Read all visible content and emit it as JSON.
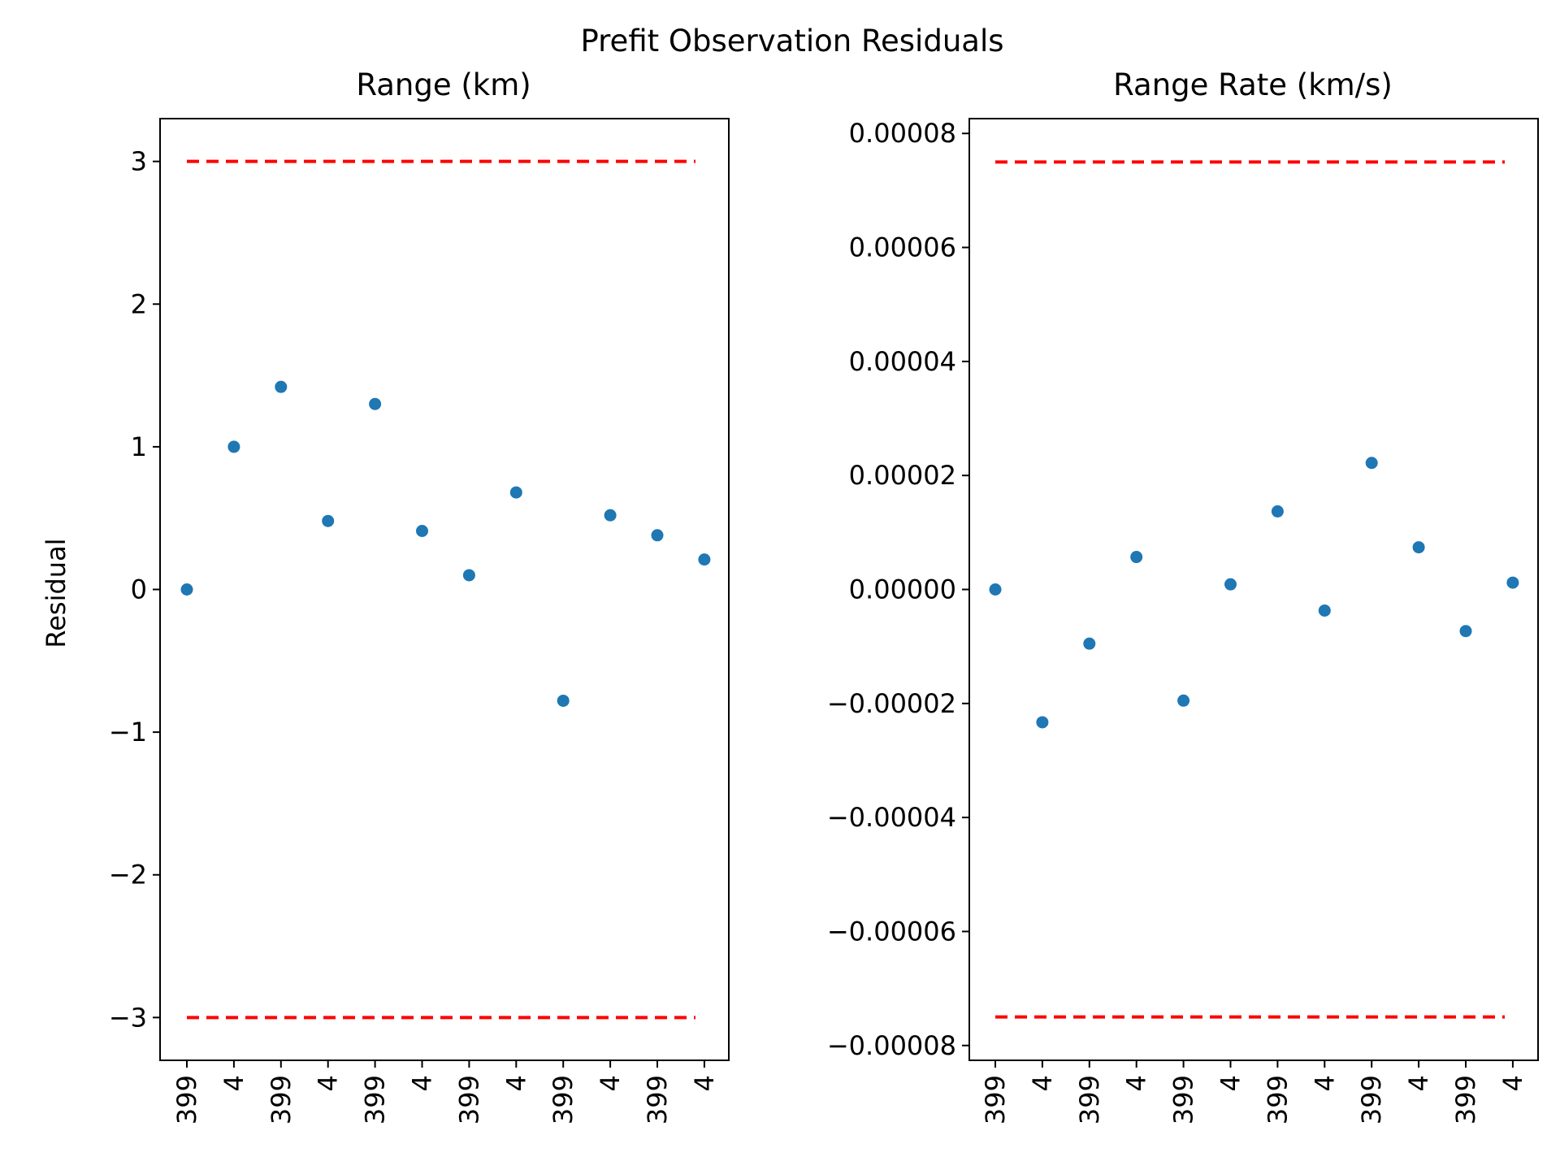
{
  "figure": {
    "suptitle": "Prefit Observation Residuals",
    "ylabel": "Residual",
    "point_color": "#1f77b4",
    "bound_color": "#ff0000"
  },
  "chart_data": [
    {
      "type": "scatter",
      "title": "Range (km)",
      "xlabel": "",
      "ylabel": "Residual",
      "categories": [
        "399",
        "4",
        "399",
        "4",
        "399",
        "4",
        "399",
        "4",
        "399",
        "4",
        "399",
        "4"
      ],
      "values": [
        0.0,
        1.0,
        1.42,
        0.48,
        1.3,
        0.41,
        0.1,
        0.68,
        -0.78,
        0.52,
        0.38,
        0.21
      ],
      "bounds": [
        3,
        -3
      ],
      "ylim": [
        -3.3,
        3.3
      ],
      "yticks": [
        3,
        2,
        1,
        0,
        -1,
        -2,
        -3
      ],
      "ytick_labels": [
        "3",
        "2",
        "1",
        "0",
        "−1",
        "−2",
        "−3"
      ],
      "grid": false
    },
    {
      "type": "scatter",
      "title": "Range Rate (km/s)",
      "xlabel": "",
      "ylabel": "",
      "categories": [
        "399",
        "4",
        "399",
        "4",
        "399",
        "4",
        "399",
        "4",
        "399",
        "4",
        "399",
        "4"
      ],
      "values": [
        0.0,
        -2.33e-05,
        -9.5e-06,
        5.7e-06,
        -1.95e-05,
        9e-07,
        1.37e-05,
        -3.7e-06,
        2.22e-05,
        7.4e-06,
        -7.3e-06,
        1.2e-06
      ],
      "bounds": [
        7.5e-05,
        -7.5e-05
      ],
      "ylim": [
        -8.26e-05,
        8.26e-05
      ],
      "yticks": [
        8e-05,
        6e-05,
        4e-05,
        2e-05,
        0.0,
        -2e-05,
        -4e-05,
        -6e-05,
        -8e-05
      ],
      "ytick_labels": [
        "0.00008",
        "0.00006",
        "0.00004",
        "0.00002",
        "0.00000",
        "−0.00002",
        "−0.00004",
        "−0.00006",
        "−0.00008"
      ],
      "grid": false
    }
  ]
}
